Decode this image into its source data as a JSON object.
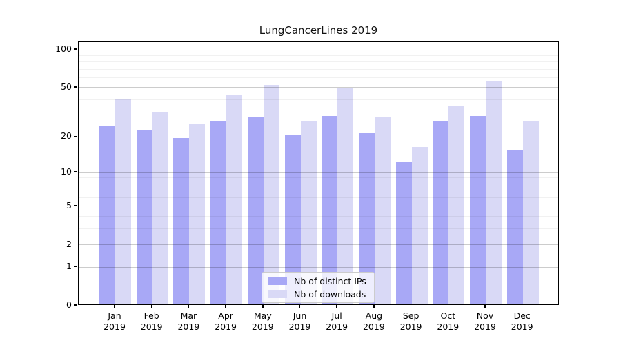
{
  "title": "LungCancerLines 2019",
  "year_label": "2019",
  "legend": {
    "items": [
      {
        "label": "Nb of distinct IPs",
        "color": "#a8a8f6"
      },
      {
        "label": "Nb of downloads",
        "color": "#d9d9f6"
      }
    ]
  },
  "chart_data": {
    "type": "bar",
    "title": "LungCancerLines 2019",
    "categories": [
      "Jan 2019",
      "Feb 2019",
      "Mar 2019",
      "Apr 2019",
      "May 2019",
      "Jun 2019",
      "Jul 2019",
      "Aug 2019",
      "Sep 2019",
      "Oct 2019",
      "Nov 2019",
      "Dec 2019"
    ],
    "months": [
      "Jan",
      "Feb",
      "Mar",
      "Apr",
      "May",
      "Jun",
      "Jul",
      "Aug",
      "Sep",
      "Oct",
      "Nov",
      "Dec"
    ],
    "series": [
      {
        "name": "Nb of distinct IPs",
        "color": "#a8a8f6",
        "values": [
          24,
          22,
          19,
          26,
          28,
          20,
          29,
          21,
          12,
          26,
          29,
          15
        ]
      },
      {
        "name": "Nb of downloads",
        "color": "#d9d9f6",
        "values": [
          39,
          31,
          25,
          43,
          51,
          26,
          48,
          28,
          16,
          35,
          55,
          26
        ]
      }
    ],
    "yscale": "log1p",
    "ylim": [
      0,
      100
    ],
    "yticks": [
      0,
      1,
      2,
      5,
      10,
      20,
      50,
      100
    ],
    "minor_yticks": [
      3,
      4,
      6,
      7,
      8,
      9,
      30,
      40,
      60,
      70,
      80,
      90
    ],
    "xlabel": "",
    "ylabel": "",
    "grid": true,
    "legend_position": "bottom-center"
  }
}
